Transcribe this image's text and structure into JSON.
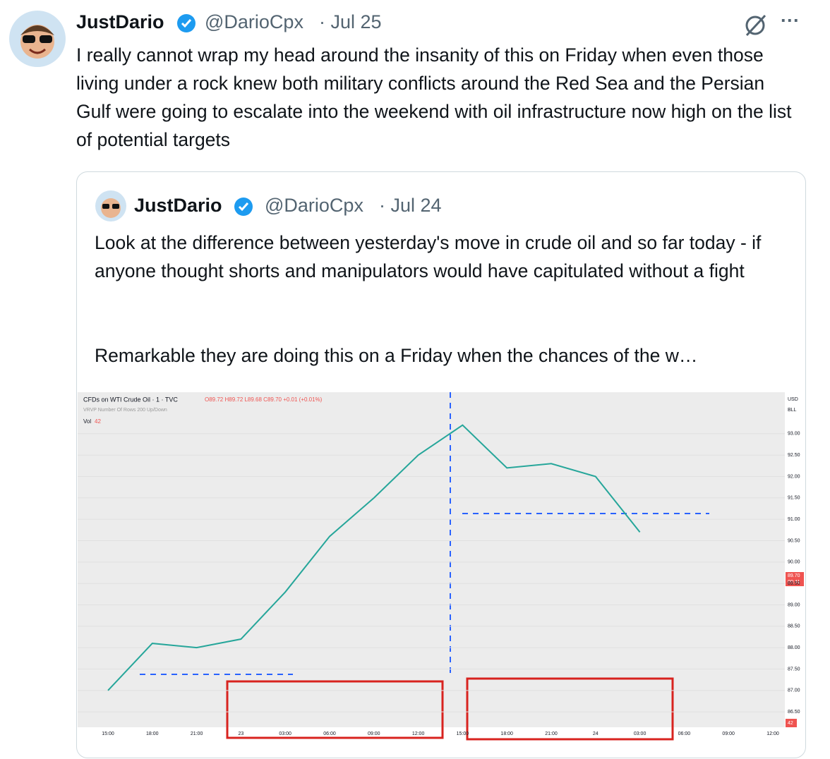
{
  "tweet": {
    "name": "JustDario",
    "handle": "@DarioCpx",
    "date": "· Jul 25",
    "more": "···",
    "text": "I really cannot wrap my head around the insanity of this on Friday when even those living under a rock knew both military conflicts around the Red Sea and the Persian Gulf were going to escalate into the weekend with oil infrastructure now high on the list of potential targets"
  },
  "quote": {
    "name": "JustDario",
    "handle": "@DarioCpx",
    "date": "· Jul 24",
    "paragraphs": [
      "Look at the difference between yesterday's move in crude oil and so far today - if anyone thought shorts and manipulators would have capitulated without a fight",
      "Remarkable they are doing this on a Friday when the chances of the w…"
    ]
  },
  "chart_data": {
    "type": "line",
    "title": "CFDs on WTI Crude Oil · 1 · TVC",
    "ohlc": "O89.72 H89.72 L89.68 C89.70 +0.01 (+0.01%)",
    "indicator": "VRVP Number Of Rows 200 Up/Down",
    "volume_label": "Vol",
    "volume_value": "42",
    "currency": "USD",
    "unit": "BLL",
    "last_price": "89.70",
    "countdown": "00:41",
    "last_volume": "42",
    "categories": [
      "15:00",
      "18:00",
      "21:00",
      "23",
      "03:00",
      "06:00",
      "09:00",
      "12:00",
      "15:00",
      "18:00",
      "21:00",
      "24",
      "03:00",
      "06:00",
      "09:00",
      "12:00"
    ],
    "series": [
      {
        "name": "WTI",
        "color": "#26a69a",
        "values": [
          87.0,
          88.1,
          88.0,
          88.2,
          89.3,
          90.6,
          91.5,
          92.5,
          93.2,
          92.2,
          92.3,
          92.0,
          90.7,
          null,
          null,
          null
        ]
      }
    ],
    "ylim": [
      86.14,
      93.97
    ],
    "yticks": [
      {
        "value": 93,
        "label": "93.00"
      },
      {
        "value": 92.5,
        "label": "92.50"
      },
      {
        "value": 92,
        "label": "92.00"
      },
      {
        "value": 91.5,
        "label": "91.50"
      },
      {
        "value": 91,
        "label": "91.00"
      },
      {
        "value": 90.5,
        "label": "90.50"
      },
      {
        "value": 90,
        "label": "90.00"
      },
      {
        "value": 89.5,
        "label": "89.50"
      },
      {
        "value": 89,
        "label": "89.00"
      },
      {
        "value": 88.5,
        "label": "88.50"
      },
      {
        "value": 88,
        "label": "88.00"
      },
      {
        "value": 87.5,
        "label": "87.50"
      },
      {
        "value": 87,
        "label": "87.00"
      },
      {
        "value": 86.5,
        "label": "86.50"
      }
    ],
    "grid": true
  }
}
